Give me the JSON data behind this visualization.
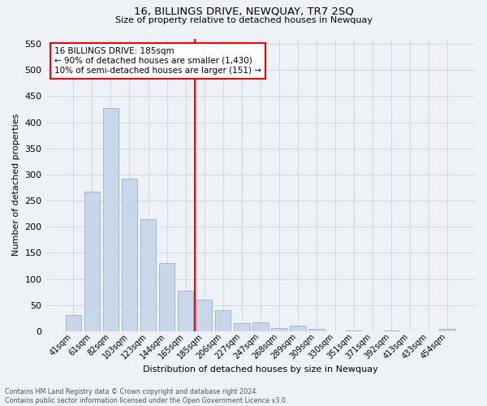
{
  "title": "16, BILLINGS DRIVE, NEWQUAY, TR7 2SQ",
  "subtitle": "Size of property relative to detached houses in Newquay",
  "xlabel": "Distribution of detached houses by size in Newquay",
  "ylabel": "Number of detached properties",
  "footer_line1": "Contains HM Land Registry data © Crown copyright and database right 2024.",
  "footer_line2": "Contains public sector information licensed under the Open Government Licence v3.0.",
  "bar_labels": [
    "41sqm",
    "61sqm",
    "82sqm",
    "103sqm",
    "123sqm",
    "144sqm",
    "165sqm",
    "185sqm",
    "206sqm",
    "227sqm",
    "247sqm",
    "268sqm",
    "289sqm",
    "309sqm",
    "330sqm",
    "351sqm",
    "371sqm",
    "392sqm",
    "413sqm",
    "433sqm",
    "454sqm"
  ],
  "bar_values": [
    31,
    268,
    427,
    292,
    215,
    130,
    78,
    60,
    40,
    15,
    17,
    7,
    11,
    5,
    0,
    2,
    0,
    2,
    0,
    0,
    5
  ],
  "bar_color": "#c8d8ea",
  "bar_edge_color": "#a0b8cc",
  "vline_index": 7,
  "vline_color": "red",
  "annotation_text": "16 BILLINGS DRIVE: 185sqm\n← 90% of detached houses are smaller (1,430)\n10% of semi-detached houses are larger (151) →",
  "annotation_box_color": "white",
  "annotation_box_edge_color": "red",
  "ylim": [
    0,
    560
  ],
  "yticks": [
    0,
    50,
    100,
    150,
    200,
    250,
    300,
    350,
    400,
    450,
    500,
    550
  ],
  "grid_color": "#ccd8e4",
  "bg_color": "#eef2f7"
}
